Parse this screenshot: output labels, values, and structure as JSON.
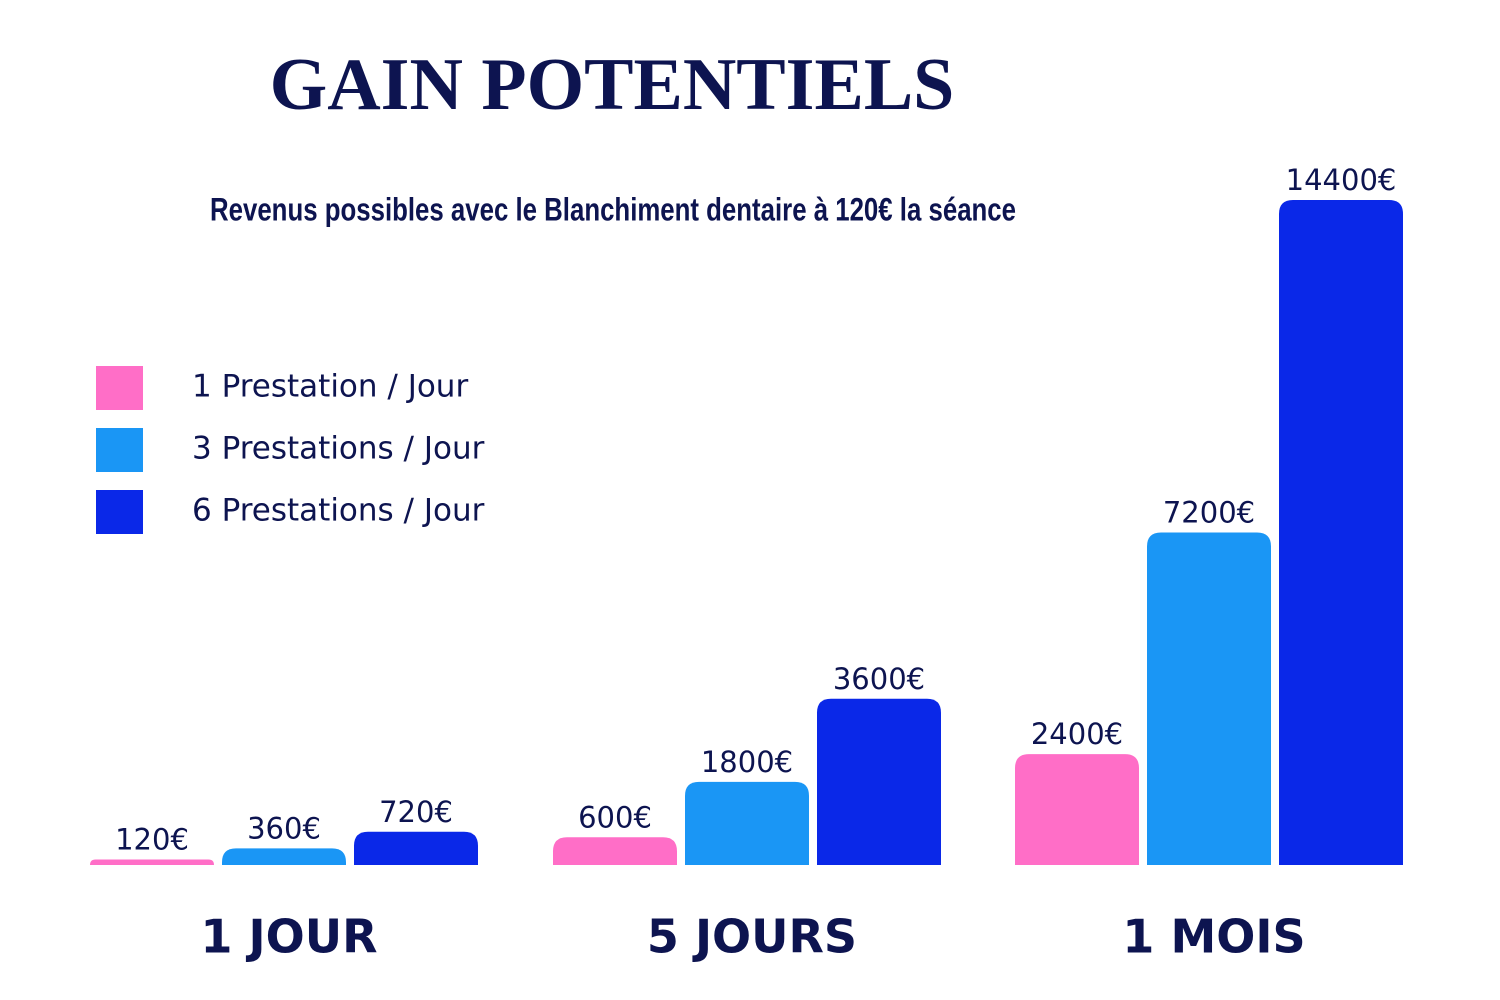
{
  "chart_data": {
    "type": "bar",
    "title": "GAIN POTENTIELS",
    "subtitle": "Revenus possibles avec le Blanchiment dentaire à 120€ la séance",
    "categories": [
      "1 JOUR",
      "5 JOURS",
      "1 MOIS"
    ],
    "series": [
      {
        "name": "1 Prestation / Jour",
        "color": "#ff6ec7",
        "values": [
          120,
          600,
          2400
        ],
        "value_labels": [
          "120€",
          "600€",
          "2400€"
        ]
      },
      {
        "name": "3 Prestations / Jour",
        "color": "#1a96f5",
        "values": [
          360,
          1800,
          7200
        ],
        "value_labels": [
          "360€",
          "1800€",
          "7200€"
        ]
      },
      {
        "name": "6 Prestations / Jour",
        "color": "#0a28e8",
        "values": [
          720,
          3600,
          14400
        ],
        "value_labels": [
          "720€",
          "3600€",
          "14400€"
        ]
      }
    ],
    "legend": "left"
  }
}
